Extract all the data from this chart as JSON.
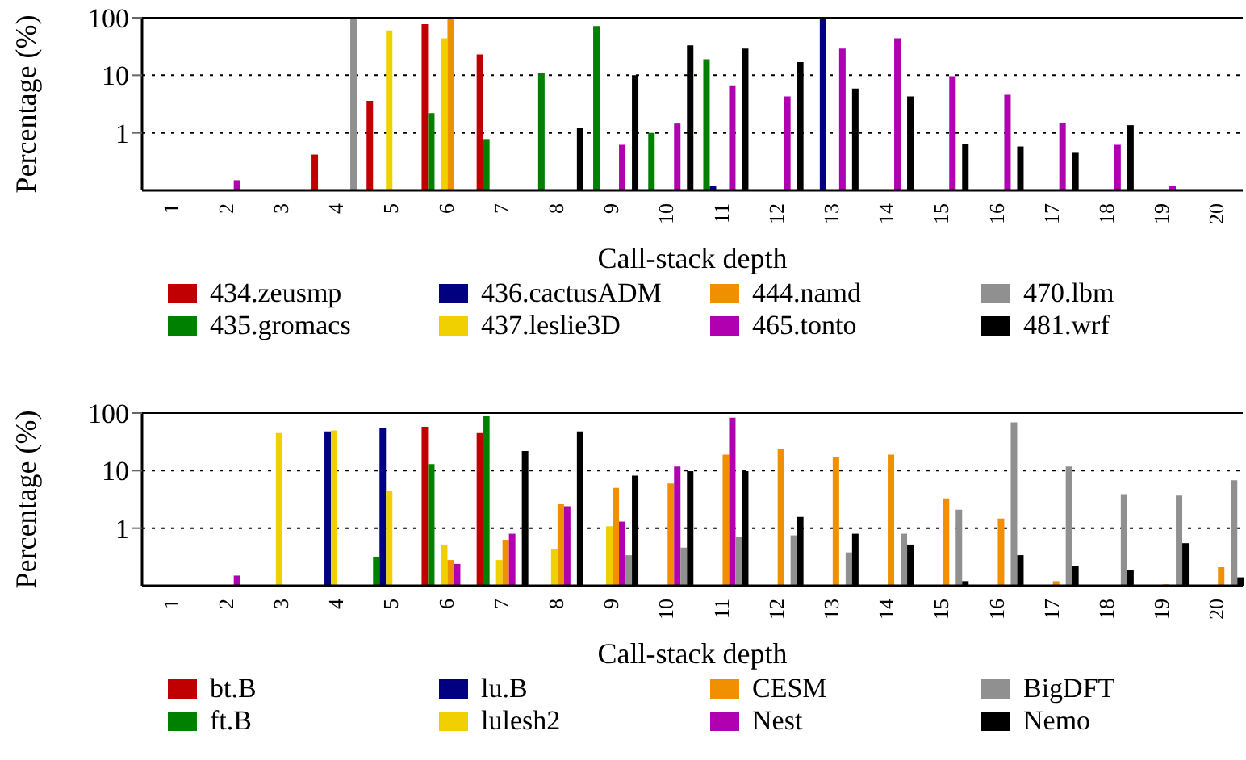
{
  "chart_data": [
    {
      "type": "bar",
      "xlabel": "Call-stack depth",
      "ylabel": "Percentage (%)",
      "log": true,
      "grid": "y",
      "legend": "bottom",
      "ylim": [
        0.1,
        100
      ],
      "yticks": [
        1,
        10,
        100
      ],
      "categories": [
        "1",
        "2",
        "3",
        "4",
        "5",
        "6",
        "7",
        "8",
        "9",
        "10",
        "11",
        "12",
        "13",
        "14",
        "15",
        "16",
        "17",
        "18",
        "19",
        "20"
      ],
      "series": [
        {
          "name": "434.zeusmp",
          "color": "#c00000",
          "values": [
            null,
            null,
            null,
            0.42,
            3.6,
            77,
            23,
            null,
            null,
            null,
            null,
            null,
            null,
            null,
            null,
            null,
            null,
            null,
            null,
            null
          ]
        },
        {
          "name": "435.gromacs",
          "color": "#008000",
          "values": [
            null,
            null,
            null,
            null,
            null,
            2.2,
            0.78,
            10.8,
            72,
            1.0,
            19,
            null,
            null,
            null,
            null,
            null,
            null,
            null,
            null,
            null
          ]
        },
        {
          "name": "436.cactusADM",
          "color": "#000080",
          "values": [
            null,
            null,
            null,
            null,
            null,
            null,
            null,
            null,
            null,
            null,
            0.12,
            null,
            100,
            null,
            null,
            null,
            null,
            null,
            null,
            null
          ]
        },
        {
          "name": "437.leslie3D",
          "color": "#f0d000",
          "values": [
            null,
            null,
            null,
            null,
            60,
            44,
            null,
            null,
            null,
            null,
            null,
            null,
            null,
            null,
            null,
            null,
            null,
            null,
            null,
            null
          ]
        },
        {
          "name": "444.namd",
          "color": "#f09000",
          "values": [
            null,
            null,
            null,
            null,
            null,
            100,
            null,
            null,
            null,
            null,
            null,
            null,
            null,
            null,
            null,
            null,
            null,
            null,
            null,
            null
          ]
        },
        {
          "name": "465.tonto",
          "color": "#b000b0",
          "values": [
            null,
            0.15,
            null,
            null,
            null,
            null,
            null,
            null,
            0.62,
            1.45,
            6.7,
            4.3,
            29,
            44,
            9.6,
            4.6,
            1.5,
            0.62,
            0.12,
            null
          ]
        },
        {
          "name": "470.lbm",
          "color": "#909090",
          "values": [
            null,
            null,
            null,
            100,
            null,
            null,
            null,
            null,
            null,
            null,
            null,
            null,
            null,
            null,
            null,
            null,
            null,
            null,
            null,
            null
          ]
        },
        {
          "name": "481.wrf",
          "color": "#000000",
          "values": [
            null,
            null,
            null,
            null,
            null,
            null,
            null,
            1.2,
            10,
            33,
            29,
            17,
            5.9,
            4.3,
            0.65,
            0.58,
            0.45,
            1.36,
            null,
            null
          ]
        }
      ]
    },
    {
      "type": "bar",
      "xlabel": "Call-stack depth",
      "ylabel": "Percentage (%)",
      "log": true,
      "grid": "y",
      "legend": "bottom",
      "ylim": [
        0.1,
        100
      ],
      "yticks": [
        1,
        10,
        100
      ],
      "categories": [
        "1",
        "2",
        "3",
        "4",
        "5",
        "6",
        "7",
        "8",
        "9",
        "10",
        "11",
        "12",
        "13",
        "14",
        "15",
        "16",
        "17",
        "18",
        "19",
        "20"
      ],
      "series": [
        {
          "name": "bt.B",
          "color": "#c00000",
          "values": [
            null,
            null,
            null,
            null,
            null,
            58,
            45,
            null,
            null,
            null,
            null,
            null,
            null,
            null,
            null,
            null,
            null,
            null,
            null,
            null
          ]
        },
        {
          "name": "ft.B",
          "color": "#008000",
          "values": [
            null,
            null,
            null,
            null,
            0.32,
            13,
            88,
            null,
            null,
            null,
            null,
            null,
            null,
            null,
            null,
            null,
            null,
            null,
            null,
            null
          ]
        },
        {
          "name": "lu.B",
          "color": "#000080",
          "values": [
            null,
            null,
            null,
            48,
            54,
            null,
            null,
            null,
            null,
            null,
            null,
            null,
            null,
            null,
            null,
            null,
            null,
            null,
            null,
            null
          ]
        },
        {
          "name": "lulesh2",
          "color": "#f0d000",
          "values": [
            null,
            null,
            45,
            50,
            4.4,
            0.52,
            0.28,
            0.43,
            1.08,
            null,
            null,
            null,
            null,
            null,
            null,
            null,
            null,
            null,
            null,
            null
          ]
        },
        {
          "name": "CESM",
          "color": "#f09000",
          "values": [
            null,
            null,
            null,
            null,
            null,
            0.28,
            0.63,
            2.6,
            5.0,
            6.0,
            19,
            24,
            17,
            19,
            3.3,
            1.47,
            0.12,
            null,
            0.106,
            0.21
          ]
        },
        {
          "name": "Nest",
          "color": "#b000b0",
          "values": [
            null,
            0.15,
            null,
            null,
            null,
            0.24,
            0.8,
            2.4,
            1.3,
            11.8,
            83,
            null,
            null,
            null,
            null,
            null,
            null,
            null,
            null,
            null
          ]
        },
        {
          "name": "BigDFT",
          "color": "#909090",
          "values": [
            null,
            null,
            null,
            null,
            null,
            null,
            null,
            null,
            0.34,
            0.46,
            0.71,
            0.75,
            0.38,
            0.8,
            2.1,
            69,
            11.8,
            3.9,
            3.7,
            6.8
          ]
        },
        {
          "name": "Nemo",
          "color": "#000000",
          "values": [
            null,
            null,
            null,
            null,
            null,
            null,
            22,
            48,
            8.2,
            9.8,
            9.8,
            1.57,
            0.8,
            0.52,
            0.12,
            0.34,
            0.22,
            0.19,
            0.55,
            0.14
          ]
        }
      ]
    }
  ]
}
